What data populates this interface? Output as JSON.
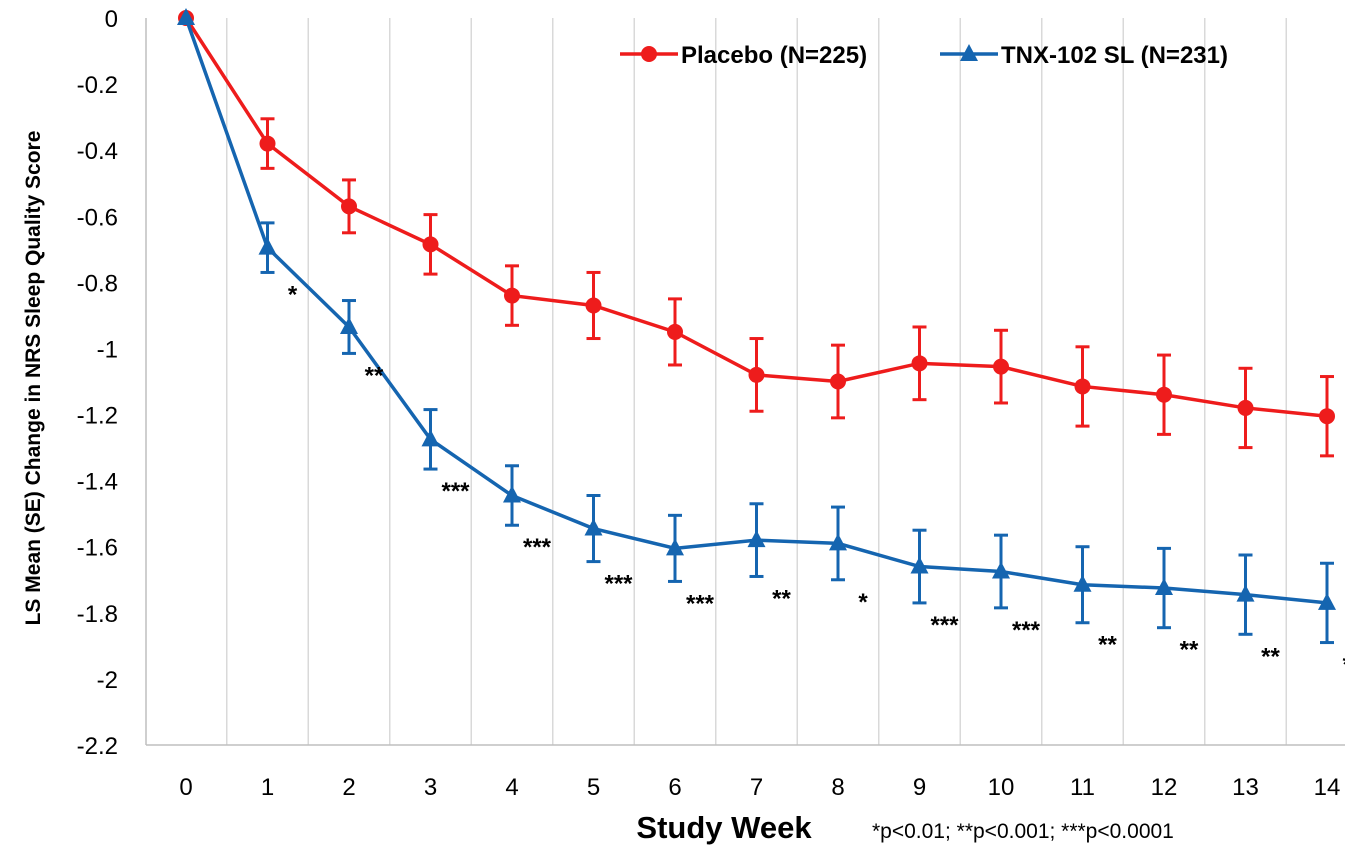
{
  "chart_data": {
    "type": "line",
    "title": "",
    "xlabel": "Study Week",
    "ylabel": "LS Mean (SE) Change in NRS Sleep Quality Score",
    "x": [
      0,
      1,
      2,
      3,
      4,
      5,
      6,
      7,
      8,
      9,
      10,
      11,
      12,
      13,
      14
    ],
    "xticks": [
      "0",
      "1",
      "2",
      "3",
      "4",
      "5",
      "6",
      "7",
      "8",
      "9",
      "10",
      "11",
      "12",
      "13",
      "14"
    ],
    "yticks": [
      "0",
      "-0.2",
      "-0.4",
      "-0.6",
      "-0.8",
      "-1",
      "-1.2",
      "-1.4",
      "-1.6",
      "-1.8",
      "-2",
      "-2.2"
    ],
    "ylim": [
      -2.2,
      0
    ],
    "grid": "vertical",
    "legend_position": "top-right",
    "series": [
      {
        "name": "Placebo (N=225)",
        "color": "#ee1c1c",
        "marker": "circle",
        "values": [
          0,
          -0.38,
          -0.57,
          -0.685,
          -0.84,
          -0.87,
          -0.95,
          -1.08,
          -1.1,
          -1.045,
          -1.055,
          -1.115,
          -1.14,
          -1.18,
          -1.205
        ],
        "errors": [
          0,
          0.075,
          0.08,
          0.09,
          0.09,
          0.1,
          0.1,
          0.11,
          0.11,
          0.11,
          0.11,
          0.12,
          0.12,
          0.12,
          0.12
        ]
      },
      {
        "name": "TNX-102 SL (N=231)",
        "color": "#1565b0",
        "marker": "triangle",
        "values": [
          0,
          -0.695,
          -0.935,
          -1.275,
          -1.445,
          -1.545,
          -1.605,
          -1.58,
          -1.59,
          -1.66,
          -1.675,
          -1.715,
          -1.725,
          -1.745,
          -1.77
        ],
        "errors": [
          0,
          0.075,
          0.08,
          0.09,
          0.09,
          0.1,
          0.1,
          0.11,
          0.11,
          0.11,
          0.11,
          0.115,
          0.12,
          0.12,
          0.12
        ]
      }
    ],
    "annotations": [
      {
        "week": 1,
        "label": "*"
      },
      {
        "week": 2,
        "label": "**"
      },
      {
        "week": 3,
        "label": "***"
      },
      {
        "week": 4,
        "label": "***"
      },
      {
        "week": 5,
        "label": "***"
      },
      {
        "week": 6,
        "label": "***"
      },
      {
        "week": 7,
        "label": "**"
      },
      {
        "week": 8,
        "label": "*"
      },
      {
        "week": 9,
        "label": "***"
      },
      {
        "week": 10,
        "label": "***"
      },
      {
        "week": 11,
        "label": "**"
      },
      {
        "week": 12,
        "label": "**"
      },
      {
        "week": 13,
        "label": "**"
      },
      {
        "week": 14,
        "label": "**"
      }
    ],
    "footnote": "*p<0.01; **p<0.001; ***p<0.0001"
  }
}
